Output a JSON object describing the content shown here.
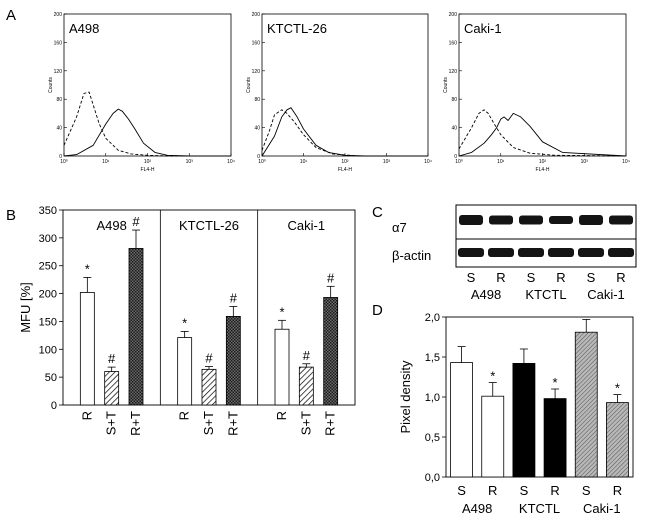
{
  "panel_letters": {
    "a": "A",
    "b": "B",
    "c": "C",
    "d": "D"
  },
  "chart_data": [
    {
      "type": "line",
      "panel": "A",
      "xscale": "log",
      "xlabel": "FL4-H",
      "ylabel": "Counts",
      "xlim": [
        1,
        10000
      ],
      "ylim": [
        0,
        200
      ],
      "x_ticks": [
        "10⁰",
        "10¹",
        "10²",
        "10³",
        "10⁴"
      ],
      "y_ticks": [
        "0",
        "40",
        "80",
        "120",
        "160",
        "200"
      ],
      "plots": [
        {
          "label": "A498",
          "series": [
            {
              "name": "dashed",
              "style": "dashed",
              "x": [
                1,
                2,
                3,
                4,
                5,
                7,
                10,
                20,
                40,
                100,
                300,
                1000,
                10000
              ],
              "y": [
                15,
                55,
                88,
                90,
                72,
                45,
                25,
                8,
                3,
                1,
                0,
                0,
                0
              ]
            },
            {
              "name": "solid",
              "style": "solid",
              "x": [
                1,
                2,
                5,
                10,
                15,
                20,
                25,
                35,
                50,
                80,
                150,
                300,
                1000,
                10000
              ],
              "y": [
                0,
                2,
                15,
                45,
                60,
                66,
                63,
                52,
                38,
                18,
                5,
                1,
                0,
                0
              ]
            }
          ]
        },
        {
          "label": "KTCTL-26",
          "series": [
            {
              "name": "dashed",
              "style": "dashed",
              "x": [
                1,
                1.5,
                2,
                3,
                4,
                6,
                10,
                20,
                50,
                200,
                10000
              ],
              "y": [
                8,
                35,
                58,
                65,
                60,
                48,
                30,
                12,
                3,
                0,
                0
              ]
            },
            {
              "name": "solid",
              "style": "solid",
              "x": [
                1,
                2,
                3,
                4,
                5,
                7,
                10,
                20,
                40,
                100,
                300,
                10000
              ],
              "y": [
                0,
                28,
                55,
                65,
                68,
                55,
                38,
                15,
                5,
                1,
                0,
                0
              ]
            }
          ]
        },
        {
          "label": "Caki-1",
          "series": [
            {
              "name": "dashed",
              "style": "dashed",
              "x": [
                1,
                2,
                3,
                4,
                5,
                7,
                10,
                20,
                50,
                200,
                10000
              ],
              "y": [
                10,
                40,
                60,
                65,
                60,
                45,
                30,
                12,
                4,
                1,
                0
              ]
            },
            {
              "name": "solid",
              "style": "solid",
              "x": [
                1,
                2,
                4,
                6,
                8,
                10,
                12,
                15,
                20,
                30,
                50,
                100,
                300,
                10000
              ],
              "y": [
                0,
                5,
                18,
                30,
                40,
                52,
                55,
                50,
                60,
                55,
                42,
                20,
                5,
                0
              ]
            }
          ]
        }
      ]
    },
    {
      "type": "bar",
      "panel": "B",
      "ylabel": "MFU [%]",
      "ylim": [
        0,
        350
      ],
      "y_ticks": [
        "0",
        "50",
        "100",
        "150",
        "200",
        "250",
        "300",
        "350"
      ],
      "groups": [
        {
          "label": "A498",
          "categories": [
            "R",
            "S+T",
            "R+T"
          ],
          "values": [
            202,
            60,
            281
          ],
          "errors": [
            27,
            8,
            33
          ],
          "marks": [
            "*",
            "#",
            "#"
          ]
        },
        {
          "label": "KTCTL-26",
          "categories": [
            "R",
            "S+T",
            "R+T"
          ],
          "values": [
            121,
            64,
            159
          ],
          "errors": [
            11,
            5,
            18
          ],
          "marks": [
            "*",
            "#",
            "#"
          ]
        },
        {
          "label": "Caki-1",
          "categories": [
            "R",
            "S+T",
            "R+T"
          ],
          "values": [
            136,
            68,
            193
          ],
          "errors": [
            16,
            6,
            20
          ],
          "marks": [
            "*",
            "#",
            "#"
          ]
        }
      ]
    },
    {
      "type": "bar",
      "panel": "D",
      "ylabel": "Pixel density",
      "ylim": [
        0,
        2
      ],
      "y_ticks": [
        "0,0",
        "0,5",
        "1,0",
        "1,5",
        "2,0"
      ],
      "categories": [
        "S",
        "R",
        "S",
        "R",
        "S",
        "R"
      ],
      "group_labels": [
        "A498",
        "KTCTL",
        "Caki-1"
      ],
      "values": [
        1.43,
        1.01,
        1.42,
        0.98,
        1.81,
        0.93
      ],
      "errors": [
        0.2,
        0.17,
        0.18,
        0.12,
        0.16,
        0.1
      ],
      "marks": [
        "",
        "*",
        "",
        "*",
        "",
        "*"
      ],
      "fills": [
        "white",
        "white",
        "black",
        "black",
        "hatched",
        "hatched"
      ]
    }
  ],
  "blot": {
    "row_labels": [
      "α7",
      "β-actin"
    ],
    "lane_labels": [
      "S",
      "R",
      "S",
      "R",
      "S",
      "R"
    ],
    "group_labels": [
      "A498",
      "KTCTL",
      "Caki-1"
    ]
  }
}
